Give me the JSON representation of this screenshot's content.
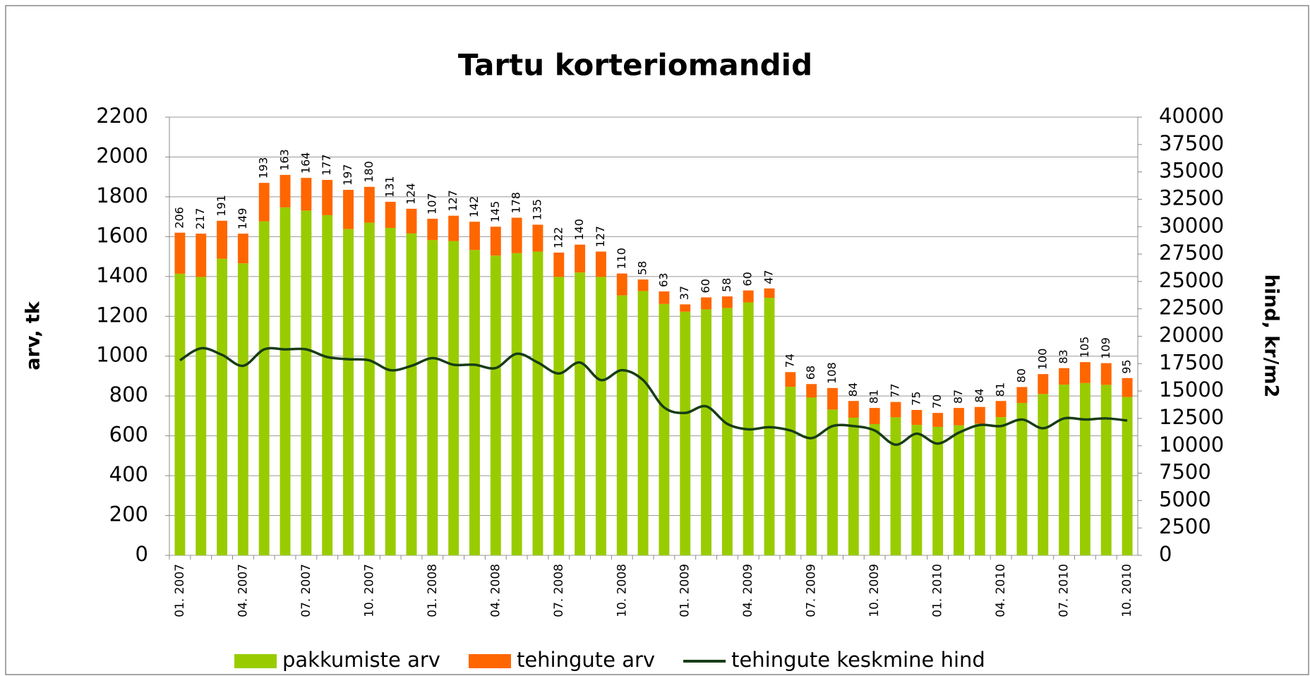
{
  "chart_data": {
    "type": "bar",
    "title": "Tartu korteriomandid",
    "y_label": "arv, tk",
    "y2_label": "hind, kr/m2",
    "categories": [
      "01. 2007",
      null,
      null,
      "04. 2007",
      null,
      null,
      "07. 2007",
      null,
      null,
      "10. 2007",
      null,
      null,
      "01. 2008",
      null,
      null,
      "04. 2008",
      null,
      null,
      "07. 2008",
      null,
      null,
      "10. 2008",
      null,
      null,
      "01. 2009",
      null,
      null,
      "04. 2009",
      null,
      null,
      "07. 2009",
      null,
      null,
      "10. 2009",
      null,
      null,
      "01. 2010",
      null,
      null,
      "04. 2010",
      null,
      null,
      "07. 2010",
      null,
      null,
      "10. 2010"
    ],
    "series": [
      {
        "name": "pakkumiste arv",
        "color": "#99cc00",
        "values": [
          1414,
          1398,
          1489,
          1466,
          1677,
          1747,
          1731,
          1708,
          1638,
          1670,
          1644,
          1616,
          1583,
          1578,
          1533,
          1505,
          1517,
          1525,
          1398,
          1420,
          1398,
          1305,
          1327,
          1262,
          1223,
          1235,
          1242,
          1270,
          1293,
          846,
          792,
          732,
          691,
          659,
          693,
          655,
          645,
          653,
          661,
          694,
          765,
          810,
          857,
          865,
          856,
          795
        ]
      },
      {
        "name": "tehingute arv",
        "color": "#ff6600",
        "values": [
          206,
          217,
          191,
          149,
          193,
          163,
          164,
          177,
          197,
          180,
          131,
          124,
          107,
          127,
          142,
          145,
          178,
          135,
          122,
          140,
          127,
          110,
          58,
          63,
          37,
          60,
          58,
          60,
          47,
          74,
          68,
          108,
          84,
          81,
          77,
          75,
          70,
          87,
          84,
          81,
          80,
          100,
          83,
          105,
          109,
          95
        ]
      },
      {
        "name": "tehingute keskmine hind",
        "color": "#173d17",
        "type": "line",
        "axis": "y2",
        "values": [
          17800,
          18900,
          18300,
          17300,
          18800,
          18800,
          18800,
          18100,
          17900,
          17800,
          16900,
          17300,
          18000,
          17400,
          17400,
          17100,
          18400,
          17600,
          16600,
          17600,
          16000,
          16900,
          16000,
          13500,
          13000,
          13600,
          12000,
          11500,
          11700,
          11400,
          10700,
          11800,
          11800,
          11400,
          10100,
          11100,
          10200,
          11200,
          11900,
          11800,
          12400,
          11600,
          12500,
          12400,
          12500,
          12300
        ]
      }
    ],
    "ylim": [
      0,
      2200
    ],
    "yticks": [
      0,
      200,
      400,
      600,
      800,
      1000,
      1200,
      1400,
      1600,
      1800,
      2000,
      2200
    ],
    "y2lim": [
      0,
      40000
    ],
    "y2ticks": [
      0,
      2500,
      5000,
      7500,
      10000,
      12500,
      15000,
      17500,
      20000,
      22500,
      25000,
      27500,
      30000,
      32500,
      35000,
      37500,
      40000
    ],
    "grid": true,
    "legend": "bottom"
  }
}
